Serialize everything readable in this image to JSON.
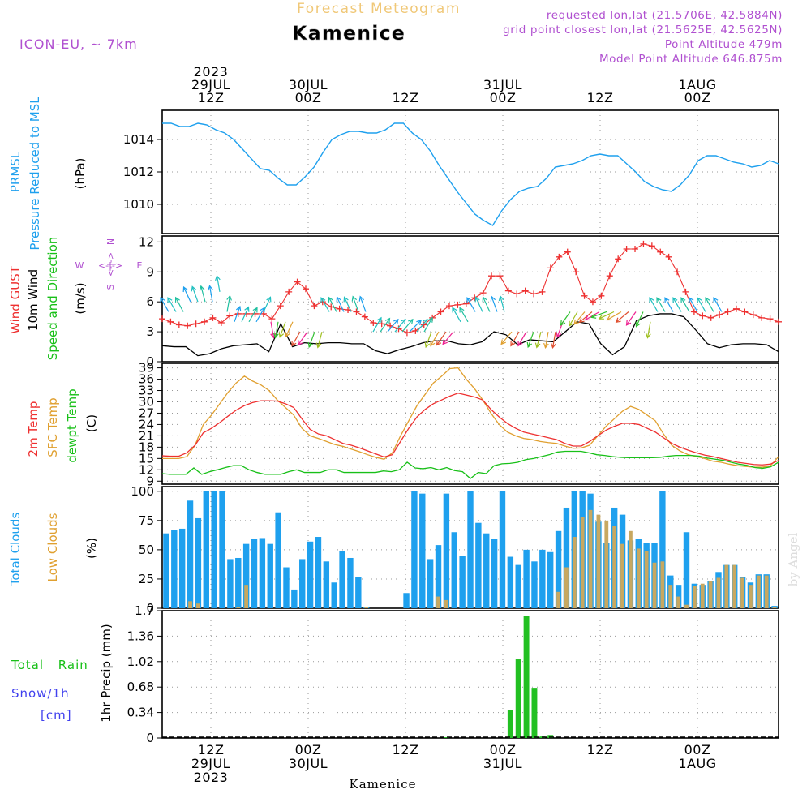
{
  "header": {
    "product": "Forecast Meteogram",
    "location": "Kamenice",
    "model": "ICON-EU, ~ 7km",
    "requested": "requested lon,lat (21.5706E, 42.5884N)",
    "grid_point": "grid point closest lon,lat (21.5625E, 42.5625N)",
    "point_altitude": "Point Altitude 479m",
    "model_altitude": "Model Point Altitude 646.875m",
    "footer": "Kamenice",
    "credit": "by Angel"
  },
  "colors": {
    "pressure": "#1ea0ee",
    "gust": "#ee3030",
    "wind": "#000000",
    "temp": "#ee3030",
    "sfc": "#e0a030",
    "dewpt": "#18c018",
    "total_cloud": "#1ea0ee",
    "low_cloud": "#c8a860",
    "rain": "#22c022",
    "snow": "#4040ee",
    "info": "#b050d0",
    "title_faint": "#f0c878"
  },
  "time_axis": {
    "top": [
      {
        "t": 6,
        "lines": [
          "2023",
          "29JUL",
          "12Z"
        ]
      },
      {
        "t": 18,
        "lines": [
          "30JUL",
          "00Z"
        ]
      },
      {
        "t": 30,
        "lines": [
          "12Z"
        ]
      },
      {
        "t": 42,
        "lines": [
          "31JUL",
          "00Z"
        ]
      },
      {
        "t": 54,
        "lines": [
          "12Z"
        ]
      },
      {
        "t": 66,
        "lines": [
          "1AUG",
          "00Z"
        ]
      }
    ],
    "bottom": [
      {
        "t": 6,
        "lines": [
          "12Z",
          "29JUL",
          "2023"
        ]
      },
      {
        "t": 18,
        "lines": [
          "00Z",
          "30JUL"
        ]
      },
      {
        "t": 30,
        "lines": [
          "12Z"
        ]
      },
      {
        "t": 42,
        "lines": [
          "00Z",
          "31JUL"
        ]
      },
      {
        "t": 54,
        "lines": [
          "12Z"
        ]
      },
      {
        "t": 66,
        "lines": [
          "00Z",
          "1AUG"
        ]
      }
    ]
  },
  "panels": {
    "pressure": {
      "labels": [
        "PRMSL",
        "Pressure Reduced to MSL"
      ],
      "unit": "(hPa)"
    },
    "wind": {
      "labels": [
        "Wind GUST",
        "10m Wind",
        "Speed and Direction"
      ],
      "unit": "(m/s)",
      "compass": {
        "n": "N",
        "s": "S",
        "w": "W",
        "e": "E",
        "arrows": "<-|->"
      }
    },
    "temp": {
      "labels": [
        "2m Temp",
        "SFC Temp",
        "dewpt Temp"
      ],
      "unit": "(C)"
    },
    "clouds": {
      "labels": [
        "Total Clouds",
        "Low Clouds"
      ],
      "unit": "(%)"
    },
    "precip": {
      "labels": [
        "Total Rain",
        "Snow/1h",
        "[cm]"
      ],
      "unit": "1hr Precip (mm)"
    }
  },
  "chart_data": [
    {
      "type": "line",
      "id": "pressure",
      "ylabel": "(hPa)",
      "ylim": [
        1008.2,
        1015.8
      ],
      "yticks": [
        1010,
        1012,
        1014
      ],
      "series": [
        {
          "name": "PRMSL",
          "values": [
            1015.0,
            1015.0,
            1014.8,
            1014.8,
            1015.0,
            1014.9,
            1014.6,
            1014.4,
            1014.0,
            1013.4,
            1012.8,
            1012.2,
            1012.1,
            1011.6,
            1011.2,
            1011.2,
            1011.7,
            1012.3,
            1013.2,
            1014.0,
            1014.3,
            1014.5,
            1014.5,
            1014.4,
            1014.4,
            1014.6,
            1015.0,
            1015.0,
            1014.4,
            1014.0,
            1013.3,
            1012.4,
            1011.6,
            1010.8,
            1010.1,
            1009.4,
            1009.0,
            1008.7,
            1009.6,
            1010.3,
            1010.8,
            1011.0,
            1011.1,
            1011.6,
            1012.3,
            1012.4,
            1012.5,
            1012.7,
            1013.0,
            1013.1,
            1013.0,
            1013.0,
            1012.5,
            1012.0,
            1011.4,
            1011.1,
            1010.9,
            1010.8,
            1011.2,
            1011.8,
            1012.7,
            1013.0,
            1013.0,
            1012.8,
            1012.6,
            1012.5,
            1012.3,
            1012.4,
            1012.7,
            1012.5
          ]
        }
      ]
    },
    {
      "type": "line",
      "id": "wind",
      "ylabel": "(m/s)",
      "ylim": [
        0,
        12.6
      ],
      "yticks": [
        0,
        3,
        6,
        9,
        12
      ],
      "series": [
        {
          "name": "Wind GUST",
          "values": [
            4.3,
            4.0,
            3.7,
            3.6,
            3.8,
            4.0,
            4.4,
            3.9,
            4.6,
            4.8,
            4.8,
            4.8,
            4.8,
            4.3,
            5.6,
            7.0,
            8.0,
            7.3,
            5.6,
            6.0,
            5.5,
            5.3,
            5.2,
            5.0,
            4.5,
            3.9,
            3.8,
            3.6,
            3.3,
            2.9,
            3.1,
            3.7,
            4.4,
            5.0,
            5.6,
            5.7,
            5.8,
            6.4,
            6.9,
            8.6,
            8.6,
            7.1,
            6.8,
            7.1,
            6.8,
            7.0,
            9.4,
            10.5,
            11.0,
            9.0,
            6.6,
            6.0,
            6.6,
            8.6,
            10.3,
            11.3,
            11.3,
            11.8,
            11.6,
            11.0,
            10.5,
            9.0,
            7.0,
            5.0,
            4.6,
            4.4,
            4.7,
            5.0,
            5.3,
            5.0,
            4.7,
            4.4,
            4.3,
            4.0
          ]
        },
        {
          "name": "10m Wind",
          "values": [
            1.6,
            1.5,
            1.5,
            0.6,
            0.8,
            1.3,
            1.6,
            1.7,
            1.8,
            1.0,
            3.8,
            1.5,
            1.9,
            1.8,
            1.9,
            1.9,
            1.8,
            1.8,
            1.1,
            0.8,
            1.2,
            1.5,
            1.9,
            2.1,
            2.1,
            1.8,
            1.7,
            2.0,
            3.0,
            2.7,
            1.7,
            2.2,
            2.1,
            2.0,
            3.0,
            4.0,
            3.8,
            1.8,
            0.7,
            1.5,
            4.1,
            4.6,
            4.8,
            4.8,
            4.5,
            3.2,
            1.8,
            1.4,
            1.7,
            1.8,
            1.8,
            1.7,
            1.0
          ]
        }
      ],
      "barbs": {
        "slots": [
          0.8,
          1.7,
          2.6,
          3.5,
          4.4,
          5.3,
          6.2,
          7.1,
          8.0,
          8.9,
          9.8,
          10.7,
          11.6,
          12.5,
          13.4,
          14.3,
          15.2,
          16.1,
          17.0,
          17.9,
          18.8,
          19.7,
          20.6,
          21.5,
          22.4,
          23.3,
          24.2,
          25.1,
          26.0,
          26.9,
          27.8,
          28.7,
          29.6,
          30.5,
          31.4,
          32.3,
          33.2,
          34.1,
          35.0,
          35.9,
          36.8,
          37.7,
          38.6,
          39.5,
          40.4,
          41.3,
          42.2,
          43.1,
          44.0,
          44.9,
          45.8,
          46.7,
          47.6,
          48.5,
          49.4,
          50.3,
          51.2,
          52.1,
          53.0,
          53.9,
          54.8,
          55.7,
          56.6,
          57.5,
          58.4,
          59.3,
          60.2,
          61.1,
          62.0,
          63.0,
          64.0,
          65.0,
          66.0,
          67.0,
          68.0,
          69.0
        ],
        "dir_deg": [
          -30,
          -30,
          -28,
          -25,
          -20,
          -15,
          -10,
          -10,
          10,
          20,
          25,
          30,
          30,
          25,
          170,
          190,
          200,
          205,
          210,
          215,
          200,
          195,
          -30,
          -28,
          -25,
          -25,
          -20,
          -20,
          30,
          35,
          40,
          40,
          40,
          45,
          40,
          30,
          200,
          210,
          215,
          220,
          -30,
          -30,
          -30,
          -25,
          -25,
          -20,
          -15,
          220,
          210,
          210,
          200,
          195,
          190,
          190,
          200,
          215,
          210,
          220,
          230,
          240,
          250,
          245,
          240,
          230,
          215,
          205,
          190,
          -30,
          -30,
          -30,
          -30,
          -30,
          -30,
          -30,
          -30,
          -30
        ],
        "speed": [
          5,
          5,
          5,
          6,
          6,
          6,
          6,
          7,
          5,
          4,
          4,
          4,
          4,
          5,
          4,
          4,
          4,
          4,
          3,
          3,
          3,
          3,
          5,
          5,
          5,
          5,
          5,
          5,
          3,
          3,
          3,
          3,
          3,
          3,
          3,
          3,
          3,
          3,
          3,
          3,
          4,
          4,
          5,
          5,
          5,
          5,
          5,
          3,
          3,
          3,
          3,
          3,
          3,
          3,
          4,
          5,
          5,
          5,
          5,
          5,
          5,
          5,
          5,
          5,
          5,
          5,
          4,
          5,
          5,
          5,
          5,
          5,
          5,
          5,
          5,
          5
        ]
      }
    },
    {
      "type": "line",
      "id": "temp",
      "ylabel": "(C)",
      "ylim": [
        8.2,
        40.2
      ],
      "yticks": [
        9,
        12,
        15,
        18,
        21,
        24,
        27,
        30,
        33,
        36,
        39
      ],
      "series": [
        {
          "name": "2m Temp",
          "values": [
            15.7,
            15.6,
            15.6,
            16.5,
            18.5,
            21.8,
            23.0,
            24.5,
            26.2,
            27.8,
            29.0,
            29.8,
            30.3,
            30.3,
            30.2,
            29.5,
            28.5,
            25.5,
            22.7,
            21.5,
            21.0,
            20.0,
            19.0,
            18.5,
            17.8,
            17.0,
            16.2,
            15.4,
            16.0,
            19.5,
            23.0,
            26.0,
            28.0,
            29.5,
            30.5,
            31.5,
            32.3,
            31.8,
            31.3,
            30.5,
            28.0,
            26.0,
            24.3,
            23.0,
            22.0,
            21.5,
            21.0,
            20.5,
            20.0,
            19.0,
            18.3,
            18.3,
            19.5,
            21.0,
            22.5,
            23.5,
            24.3,
            24.3,
            24.0,
            23.0,
            22.0,
            20.5,
            19.0,
            18.0,
            17.2,
            16.5,
            15.9,
            15.5,
            15.0,
            14.5,
            14.0,
            13.7,
            13.4,
            13.3,
            13.5,
            14.5
          ]
        },
        {
          "name": "SFC Temp",
          "values": [
            15.0,
            15.0,
            15.0,
            15.5,
            18.5,
            24.0,
            26.5,
            29.5,
            32.5,
            35.0,
            36.8,
            35.5,
            34.5,
            33.0,
            30.5,
            28.5,
            26.5,
            23.0,
            21.0,
            20.3,
            19.5,
            18.7,
            18.2,
            17.5,
            16.8,
            16.0,
            15.3,
            14.8,
            16.5,
            21.0,
            25.0,
            29.0,
            32.0,
            35.0,
            36.8,
            38.8,
            39.0,
            36.0,
            33.5,
            30.5,
            27.0,
            24.0,
            22.0,
            21.0,
            20.3,
            20.0,
            19.5,
            19.2,
            19.0,
            18.3,
            17.7,
            17.8,
            18.5,
            21.0,
            23.5,
            25.5,
            27.5,
            28.8,
            28.0,
            26.5,
            25.0,
            21.5,
            18.5,
            17.0,
            16.0,
            15.5,
            15.0,
            14.3,
            14.0,
            13.5,
            13.1,
            12.9,
            12.7,
            12.7,
            13.0,
            15.5
          ]
        },
        {
          "name": "dewpt Temp",
          "values": [
            11.0,
            10.8,
            10.8,
            10.8,
            12.5,
            10.8,
            11.5,
            12.0,
            12.6,
            13.1,
            13.1,
            12.0,
            11.3,
            10.8,
            10.8,
            10.8,
            11.5,
            12.0,
            11.3,
            11.3,
            11.3,
            12.0,
            12.0,
            11.3,
            11.3,
            11.3,
            11.3,
            11.3,
            11.7,
            11.5,
            12.0,
            14.0,
            12.5,
            12.3,
            12.6,
            12.0,
            12.6,
            11.8,
            11.5,
            9.7,
            11.3,
            11.0,
            13.1,
            13.6,
            13.7,
            14.0,
            14.7,
            15.0,
            15.5,
            16.0,
            16.7,
            16.9,
            16.9,
            16.9,
            16.5,
            16.0,
            15.8,
            15.5,
            15.3,
            15.2,
            15.2,
            15.2,
            15.2,
            15.3,
            15.6,
            15.8,
            15.8,
            15.8,
            15.6,
            15.1,
            14.8,
            14.5,
            14.0,
            13.5,
            13.2,
            12.6,
            12.4,
            12.8,
            14.0
          ]
        }
      ]
    },
    {
      "type": "bar",
      "id": "clouds",
      "ylabel": "(%)",
      "ylim": [
        0,
        104
      ],
      "yticks": [
        0,
        25,
        50,
        75,
        100
      ],
      "series": [
        {
          "name": "Total Clouds",
          "values": [
            64,
            67,
            68,
            92,
            77,
            100,
            100,
            100,
            42,
            43,
            55,
            59,
            60,
            55,
            82,
            35,
            16,
            42,
            57,
            61,
            40,
            22,
            49,
            43,
            27,
            1,
            0,
            0,
            0,
            0,
            13,
            100,
            98,
            42,
            54,
            98,
            65,
            45,
            100,
            73,
            64,
            59,
            100,
            44,
            37,
            50,
            40,
            50,
            48,
            66,
            86,
            100,
            100,
            98,
            74,
            56,
            86,
            80,
            58,
            59,
            56,
            56,
            100,
            28,
            20,
            65,
            21,
            20,
            23,
            31,
            37,
            37,
            27,
            22,
            29,
            29,
            2
          ]
        },
        {
          "name": "Low Clouds",
          "values": [
            0,
            0,
            0,
            6,
            4,
            0,
            0,
            0,
            0,
            1,
            20,
            0,
            0,
            0,
            0,
            0,
            0,
            0,
            0,
            0,
            0,
            0,
            0,
            0,
            0,
            1,
            0,
            0,
            0,
            0,
            0,
            0,
            0,
            0,
            10,
            7,
            0,
            0,
            0,
            0,
            0,
            0,
            0,
            0,
            0,
            0,
            0,
            0,
            0,
            14,
            35,
            61,
            78,
            84,
            80,
            75,
            70,
            55,
            66,
            51,
            49,
            39,
            40,
            20,
            10,
            3,
            19,
            21,
            23,
            26,
            37,
            37,
            26,
            20,
            28,
            28,
            1
          ]
        }
      ]
    },
    {
      "type": "bar",
      "id": "precip",
      "ylabel": "1hr Precip (mm)",
      "ylim": [
        0,
        1.7
      ],
      "yticks": [
        0,
        0.34,
        0.68,
        1.02,
        1.36,
        1.7
      ],
      "series": [
        {
          "name": "Total Rain",
          "values": [
            0,
            0,
            0,
            0,
            0,
            0,
            0,
            0,
            0,
            0,
            0,
            0,
            0,
            0,
            0,
            0,
            0,
            0,
            0,
            0,
            0,
            0,
            0,
            0,
            0,
            0,
            0,
            0,
            0,
            0,
            0,
            0,
            0,
            0,
            0,
            0.01,
            0,
            0,
            0,
            0,
            0,
            0,
            0,
            0.37,
            1.05,
            1.63,
            0.67,
            0.02,
            0.04,
            0,
            0,
            0,
            0,
            0,
            0,
            0,
            0,
            0,
            0,
            0,
            0,
            0,
            0,
            0,
            0,
            0,
            0,
            0,
            0,
            0,
            0,
            0,
            0,
            0,
            0,
            0,
            0
          ]
        }
      ]
    }
  ]
}
